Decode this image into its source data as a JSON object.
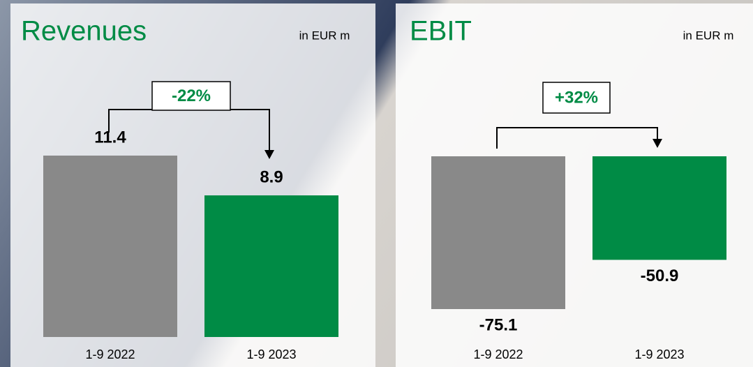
{
  "chart_data": [
    {
      "type": "bar",
      "title": "Revenues",
      "subtitle": "in EUR m",
      "categories": [
        "1-9 2022",
        "1-9 2023"
      ],
      "values": [
        11.4,
        8.9
      ],
      "colors": [
        "#898989",
        "#008b45"
      ],
      "change": "-22%"
    },
    {
      "type": "bar",
      "title": "EBIT",
      "subtitle": "in EUR m",
      "categories": [
        "1-9 2022",
        "1-9 2023"
      ],
      "values": [
        -75.1,
        -50.9
      ],
      "colors": [
        "#898989",
        "#008b45"
      ],
      "change": "+32%"
    }
  ]
}
